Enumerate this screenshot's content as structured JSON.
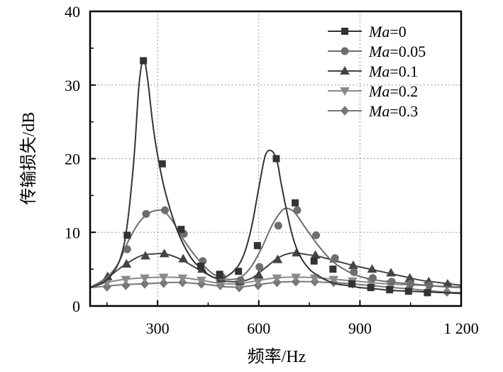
{
  "chart_data": {
    "type": "line",
    "title": "",
    "xlabel": "频率/Hz",
    "ylabel": "传输损失/dB",
    "xlim": [
      100,
      1200
    ],
    "ylim": [
      0,
      40
    ],
    "xticks": [
      300,
      600,
      900,
      1200
    ],
    "xtick_labels": [
      "300",
      "600",
      "900",
      "1 200"
    ],
    "yticks": [
      0,
      10,
      20,
      30,
      40
    ],
    "ytick_labels": [
      "0",
      "10",
      "20",
      "30",
      "40"
    ],
    "grid": "major, dotted",
    "legend_position": "top-right",
    "series": [
      {
        "name": "Ma=0",
        "name_italic": "Ma",
        "name_suffix": "=0",
        "marker": "square",
        "color": "#333333",
        "curve_x": [
          100,
          130,
          160,
          190,
          210,
          230,
          245,
          258,
          270,
          285,
          300,
          320,
          345,
          370,
          400,
          430,
          460,
          480,
          500,
          520,
          540,
          560,
          580,
          600,
          620,
          640,
          655,
          665,
          680,
          700,
          720,
          750,
          780,
          800,
          830,
          860,
          900,
          950,
          1000,
          1050,
          1100,
          1150,
          1200
        ],
        "curve_y": [
          2.5,
          3.0,
          4.0,
          6.5,
          11.0,
          20.0,
          30.0,
          33.5,
          31.0,
          25.0,
          20.5,
          16.0,
          12.0,
          9.0,
          6.5,
          5.0,
          4.0,
          3.8,
          3.9,
          4.5,
          5.5,
          7.5,
          11.0,
          16.0,
          20.5,
          21.0,
          19.5,
          17.0,
          13.5,
          9.5,
          7.0,
          5.0,
          4.0,
          3.5,
          3.0,
          2.8,
          2.5,
          2.3,
          2.1,
          2.0,
          1.9,
          1.8,
          1.7
        ],
        "marker_x": [
          210,
          258,
          314,
          370,
          428,
          484,
          540,
          596,
          652,
          708,
          764,
          820,
          876,
          932,
          988,
          1044,
          1100
        ],
        "marker_y": [
          9.6,
          33.3,
          19.3,
          10.4,
          5.4,
          4.3,
          4.7,
          8.2,
          20.0,
          14.0,
          6.1,
          5.0,
          3.0,
          2.5,
          2.2,
          2.0,
          1.8
        ]
      },
      {
        "name": "Ma=0.05",
        "name_italic": "Ma",
        "name_suffix": "=0.05",
        "marker": "circle",
        "color": "#6e6e6e",
        "curve_x": [
          100,
          140,
          180,
          210,
          240,
          270,
          300,
          320,
          345,
          370,
          400,
          430,
          460,
          490,
          520,
          550,
          580,
          610,
          640,
          670,
          690,
          710,
          740,
          780,
          820,
          860,
          900,
          950,
          1000,
          1050,
          1100,
          1150,
          1200
        ],
        "curve_y": [
          2.5,
          3.5,
          5.5,
          8.5,
          11.0,
          12.5,
          13.0,
          12.8,
          11.5,
          9.5,
          7.5,
          5.8,
          4.5,
          3.8,
          3.6,
          4.0,
          5.5,
          8.0,
          11.0,
          13.0,
          13.2,
          12.5,
          10.5,
          8.0,
          6.0,
          4.8,
          4.0,
          3.5,
          3.2,
          3.0,
          2.8,
          2.6,
          2.5
        ],
        "marker_x": [
          210,
          266,
          322,
          378,
          434,
          490,
          546,
          602,
          658,
          714,
          770,
          826,
          882,
          938,
          994,
          1050,
          1106
        ],
        "marker_y": [
          7.7,
          12.5,
          13.0,
          9.8,
          6.1,
          4.0,
          3.5,
          5.3,
          10.9,
          13.0,
          9.6,
          6.5,
          4.6,
          3.8,
          3.3,
          3.0,
          2.8
        ]
      },
      {
        "name": "Ma=0.1",
        "name_italic": "Ma",
        "name_suffix": "=0.1",
        "marker": "triangle-up",
        "color": "#444444",
        "curve_x": [
          100,
          150,
          200,
          250,
          300,
          330,
          370,
          420,
          470,
          500,
          540,
          580,
          620,
          660,
          700,
          740,
          780,
          830,
          880,
          930,
          980,
          1030,
          1080,
          1130,
          1200
        ],
        "curve_y": [
          2.5,
          3.8,
          5.5,
          6.8,
          7.1,
          7.0,
          6.3,
          5.0,
          3.8,
          3.4,
          3.3,
          3.8,
          5.2,
          6.6,
          7.2,
          7.0,
          6.7,
          6.1,
          5.5,
          5.0,
          4.5,
          4.0,
          3.5,
          3.2,
          2.8
        ],
        "marker_x": [
          152,
          208,
          264,
          320,
          376,
          432,
          488,
          544,
          600,
          656,
          712,
          768,
          824,
          880,
          936,
          992,
          1048,
          1104,
          1160
        ],
        "marker_y": [
          4.0,
          5.7,
          6.8,
          7.1,
          6.4,
          5.0,
          3.7,
          3.3,
          4.2,
          6.3,
          7.2,
          6.9,
          6.4,
          5.5,
          5.0,
          4.5,
          3.8,
          3.3,
          3.0
        ]
      },
      {
        "name": "Ma=0.2",
        "name_italic": "Ma",
        "name_suffix": "=0.2",
        "marker": "triangle-down",
        "color": "#8a8a8a",
        "curve_x": [
          100,
          150,
          200,
          250,
          300,
          340,
          380,
          430,
          480,
          530,
          580,
          630,
          680,
          730,
          780,
          830,
          880,
          930,
          980,
          1030,
          1080,
          1130,
          1200
        ],
        "curve_y": [
          2.5,
          3.2,
          3.6,
          3.8,
          3.9,
          3.9,
          3.8,
          3.5,
          3.1,
          3.0,
          3.3,
          3.7,
          3.9,
          3.9,
          3.8,
          3.6,
          3.4,
          3.2,
          3.0,
          2.9,
          2.8,
          2.7,
          2.6
        ],
        "marker_x": [
          150,
          206,
          262,
          318,
          374,
          430,
          486,
          542,
          598,
          654,
          710,
          766,
          822,
          878,
          934,
          990,
          1046,
          1102,
          1158
        ],
        "marker_y": [
          3.2,
          3.6,
          3.8,
          3.9,
          3.8,
          3.5,
          3.1,
          3.0,
          3.3,
          3.8,
          3.9,
          3.8,
          3.6,
          3.4,
          3.2,
          3.0,
          2.9,
          2.8,
          2.7
        ]
      },
      {
        "name": "Ma=0.3",
        "name_italic": "Ma",
        "name_suffix": "=0.3",
        "marker": "diamond",
        "color": "#777777",
        "curve_x": [
          100,
          150,
          200,
          250,
          300,
          350,
          400,
          450,
          500,
          550,
          600,
          650,
          700,
          750,
          800,
          850,
          900,
          950,
          1000,
          1050,
          1100,
          1150,
          1200
        ],
        "curve_y": [
          2.5,
          2.7,
          2.9,
          3.0,
          3.1,
          3.2,
          3.1,
          2.9,
          2.6,
          2.6,
          2.9,
          3.2,
          3.3,
          3.3,
          3.2,
          3.1,
          2.9,
          2.7,
          2.5,
          2.3,
          2.1,
          1.9,
          1.8
        ],
        "marker_x": [
          150,
          206,
          262,
          318,
          374,
          430,
          486,
          542,
          598,
          654,
          710,
          766,
          822,
          878,
          934,
          990,
          1046,
          1102,
          1158
        ],
        "marker_y": [
          2.6,
          2.8,
          3.0,
          3.1,
          3.2,
          3.0,
          2.8,
          2.5,
          2.8,
          3.2,
          3.3,
          3.3,
          3.2,
          3.0,
          2.8,
          2.6,
          2.4,
          2.1,
          1.9
        ]
      }
    ]
  }
}
